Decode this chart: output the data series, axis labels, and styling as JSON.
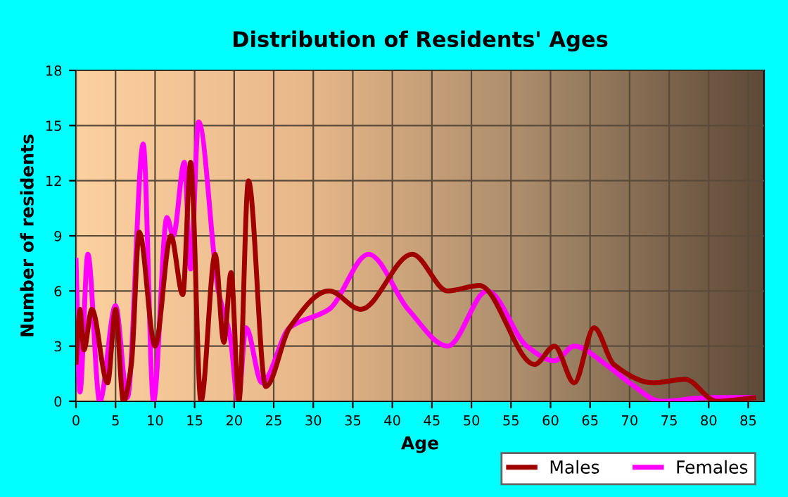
{
  "chart_data": {
    "type": "line",
    "title": "Distribution of Residents' Ages",
    "xlabel": "Age",
    "ylabel": "Number of residents",
    "xlim": [
      0,
      87
    ],
    "xticks": [
      0,
      5,
      10,
      15,
      20,
      25,
      30,
      35,
      40,
      45,
      50,
      55,
      60,
      65,
      70,
      75,
      80,
      85
    ],
    "ylim": [
      0,
      18
    ],
    "yticks": [
      0,
      3,
      6,
      9,
      12,
      15,
      18
    ],
    "grid": true,
    "legend": "bottom right",
    "marker": "none",
    "line_style": "solid",
    "series": [
      {
        "name": "Males",
        "color": "#a00000",
        "x": [
          0,
          0.5,
          1,
          2,
          4,
          5,
          6,
          7,
          8,
          10,
          12,
          13.5,
          14.5,
          15.8,
          17.6,
          18.7,
          19.6,
          20.6,
          21.8,
          24,
          27,
          32,
          36,
          42.5,
          47,
          51,
          58,
          60.5,
          63,
          65.5,
          68,
          73,
          77,
          81,
          86
        ],
        "values": [
          2,
          5,
          2.8,
          5,
          1,
          5,
          0,
          2,
          9.2,
          3,
          9,
          5.8,
          13,
          0,
          8,
          3.2,
          7,
          0,
          12,
          0.8,
          4,
          6,
          5,
          8,
          6,
          6.3,
          2,
          3,
          1,
          4,
          2,
          1,
          1.2,
          0,
          0.2
        ]
      },
      {
        "name": "Females",
        "color": "#ff00ff",
        "x": [
          0,
          0.5,
          1.5,
          3,
          5,
          6.5,
          8.5,
          9.8,
          11.5,
          12.3,
          13.7,
          14.5,
          15.5,
          18,
          19.5,
          20.5,
          21.5,
          23.5,
          27,
          32,
          37,
          42,
          47,
          52,
          57,
          60.5,
          63,
          67,
          70,
          74,
          80,
          86
        ],
        "values": [
          7.8,
          0.5,
          8,
          0,
          5.2,
          0.2,
          14,
          0,
          10,
          9,
          13,
          7.2,
          15.2,
          6,
          3.5,
          0,
          4,
          1,
          4,
          5,
          8,
          5,
          3,
          6,
          3,
          2.2,
          3,
          2,
          1,
          0,
          0.2,
          0.2
        ]
      }
    ]
  }
}
